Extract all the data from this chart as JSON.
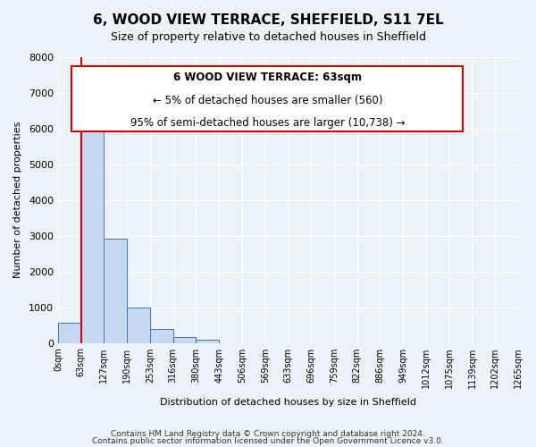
{
  "title": "6, WOOD VIEW TERRACE, SHEFFIELD, S11 7EL",
  "subtitle": "Size of property relative to detached houses in Sheffield",
  "xlabel": "Distribution of detached houses by size in Sheffield",
  "ylabel": "Number of detached properties",
  "bin_labels": [
    "0sqm",
    "63sqm",
    "127sqm",
    "190sqm",
    "253sqm",
    "316sqm",
    "380sqm",
    "443sqm",
    "506sqm",
    "569sqm",
    "633sqm",
    "696sqm",
    "759sqm",
    "822sqm",
    "886sqm",
    "949sqm",
    "1012sqm",
    "1075sqm",
    "1139sqm",
    "1202sqm",
    "1265sqm"
  ],
  "bar_heights": [
    560,
    6400,
    2920,
    980,
    380,
    160,
    80,
    0,
    0,
    0,
    0,
    0,
    0,
    0,
    0,
    0,
    0,
    0,
    0,
    0
  ],
  "bar_color": "#c6d9f0",
  "bar_edge_color": "#4472c4",
  "ylim": [
    0,
    8000
  ],
  "yticks": [
    0,
    1000,
    2000,
    3000,
    4000,
    5000,
    6000,
    7000,
    8000
  ],
  "annotation_box_color": "#ffffff",
  "annotation_box_edge": "#cc0000",
  "annotation_line1": "6 WOOD VIEW TERRACE: 63sqm",
  "annotation_line2": "← 5% of detached houses are smaller (560)",
  "annotation_line3": "95% of semi-detached houses are larger (10,738) →",
  "property_line_x": 1,
  "footer_line1": "Contains HM Land Registry data © Crown copyright and database right 2024.",
  "footer_line2": "Contains public sector information licensed under the Open Government Licence v3.0.",
  "background_color": "#eef2f8",
  "plot_background": "#eef2f8"
}
